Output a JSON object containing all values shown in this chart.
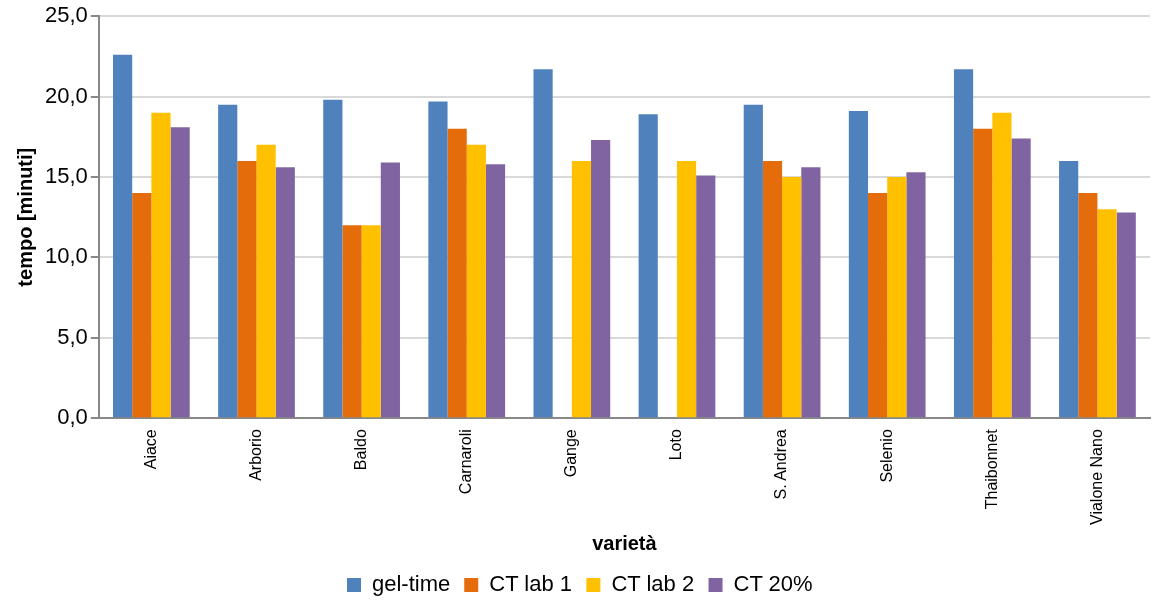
{
  "chart_data": {
    "type": "bar",
    "xlabel": "varietà",
    "ylabel": "tempo [minuti]",
    "categories": [
      "Aiace",
      "Arborio",
      "Baldo",
      "Carnaroli",
      "Gange",
      "Loto",
      "S. Andrea",
      "Selenio",
      "Thaibonnet",
      "Vialone Nano"
    ],
    "series": [
      {
        "name": "gel-time",
        "color": "#4f81bd",
        "values": [
          22.6,
          19.5,
          19.8,
          19.7,
          21.7,
          18.9,
          19.5,
          19.1,
          21.7,
          16.0
        ]
      },
      {
        "name": "CT lab 1",
        "color": "#e46c0a",
        "values": [
          14.0,
          16.0,
          12.0,
          18.0,
          null,
          null,
          16.0,
          14.0,
          18.0,
          14.0
        ]
      },
      {
        "name": "CT lab 2",
        "color": "#ffc000",
        "values": [
          19.0,
          17.0,
          12.0,
          17.0,
          16.0,
          16.0,
          15.0,
          15.0,
          19.0,
          13.0
        ]
      },
      {
        "name": "CT 20%",
        "color": "#8064a2",
        "values": [
          18.1,
          15.6,
          15.9,
          15.8,
          17.3,
          15.1,
          15.6,
          15.3,
          17.4,
          12.8
        ]
      }
    ],
    "ylim": [
      0,
      25
    ],
    "yticks": [
      {
        "value": 0,
        "label": "0,0"
      },
      {
        "value": 5,
        "label": "5,0"
      },
      {
        "value": 10,
        "label": "10,0"
      },
      {
        "value": 15,
        "label": "15,0"
      },
      {
        "value": 20,
        "label": "20,0"
      },
      {
        "value": 25,
        "label": "25,0"
      }
    ],
    "grid": "y",
    "legend": "bottom"
  }
}
